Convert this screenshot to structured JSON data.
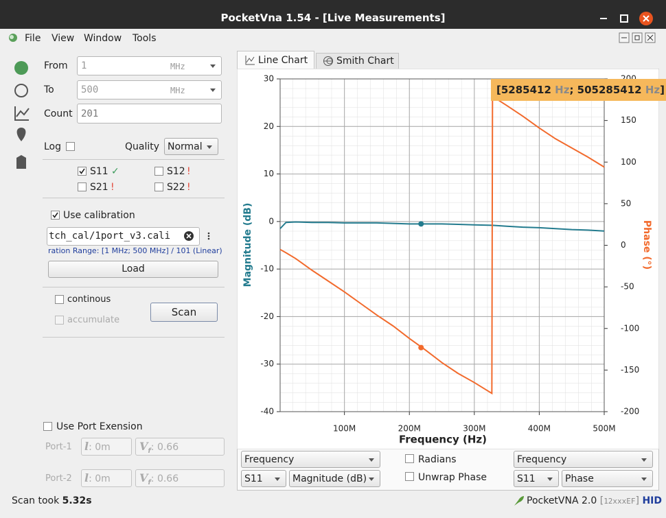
{
  "window": {
    "title": "PocketVna 1.54 - [Live Measurements]"
  },
  "menu": [
    "File",
    "View",
    "Window",
    "Tools"
  ],
  "form": {
    "from": {
      "label": "From",
      "value": "1",
      "unit": "MHz"
    },
    "to": {
      "label": "To",
      "value": "500",
      "unit": "MHz"
    },
    "count": {
      "label": "Count",
      "value": "201"
    },
    "log": {
      "label": "Log"
    },
    "quality": {
      "label": "Quality",
      "value": "Normal"
    },
    "params": [
      {
        "label": "S11",
        "status": "✓"
      },
      {
        "label": "S12",
        "status": "!"
      },
      {
        "label": "S21",
        "status": "!"
      },
      {
        "label": "S22",
        "status": "!"
      }
    ],
    "calibration": {
      "label": "Use calibration",
      "file": "tch_cal/1port_v3.cali",
      "range": "ration Range: [1 MHz; 500 MHz] / 101 (Linear)",
      "load": "Load"
    },
    "continuous": "continous",
    "accumulate": "accumulate",
    "scan": "Scan",
    "port_extension": {
      "label": "Use Port Exension",
      "ports": [
        {
          "label": "Port-1",
          "length": "l",
          "length_value": ": 0m",
          "vf": "V",
          "vf_sub": "f",
          "vf_value": ": 0.66"
        },
        {
          "label": "Port-2",
          "length": "l",
          "length_value": ": 0m",
          "vf": "V",
          "vf_sub": "f",
          "vf_value": ": 0.66"
        }
      ]
    }
  },
  "tabs": [
    "Line Chart",
    "Smith Chart"
  ],
  "chart_data": {
    "type": "line",
    "x_label": "Frequency (Hz)",
    "y_label": "Magnitude (dB)",
    "y2_label": "Phase (°)",
    "x": [
      1000000,
      10000000,
      25000000,
      50000000,
      75000000,
      100000000,
      125000000,
      150000000,
      175000000,
      200000000,
      225000000,
      250000000,
      275000000,
      300000000,
      327000000,
      328000000,
      350000000,
      375000000,
      400000000,
      425000000,
      450000000,
      475000000,
      500000000
    ],
    "xlim": [
      1000000,
      500000000
    ],
    "xticks": [
      {
        "value": 100000000,
        "label": "100M"
      },
      {
        "value": 200000000,
        "label": "200M"
      },
      {
        "value": 300000000,
        "label": "300M"
      },
      {
        "value": 400000000,
        "label": "400M"
      },
      {
        "value": 500000000,
        "label": "500M"
      }
    ],
    "ylim": [
      -40,
      30
    ],
    "yticks": [
      -40,
      -30,
      -20,
      -10,
      0,
      10,
      20,
      30
    ],
    "y2lim": [
      -200,
      200
    ],
    "y2ticks": [
      -200,
      -150,
      -100,
      -50,
      0,
      50,
      100,
      150,
      200
    ],
    "grid": true,
    "series": [
      {
        "name": "Magnitude (dB)",
        "color": "#237b8e",
        "values": [
          -1.5,
          -0.2,
          -0.1,
          -0.2,
          -0.2,
          -0.3,
          -0.3,
          -0.3,
          -0.4,
          -0.5,
          -0.5,
          -0.5,
          -0.6,
          -0.7,
          -0.8,
          -0.8,
          -1.0,
          -1.2,
          -1.3,
          -1.5,
          -1.7,
          -1.8,
          -2.0
        ]
      },
      {
        "name": "Phase",
        "color": "#f26a2c",
        "axis": "y2",
        "values": [
          -5,
          -9,
          -16,
          -30,
          -43,
          -56,
          -70,
          -84,
          -97,
          -112,
          -126,
          -141,
          -154,
          -165,
          -178,
          179,
          168,
          155,
          141,
          128,
          117,
          106,
          94
        ]
      }
    ],
    "markers": [
      {
        "x": 218000000,
        "values": [
          -0.5,
          -123
        ]
      }
    ],
    "range_label": [
      "[",
      "5285412",
      " Hz",
      "; ",
      "505285412",
      " Hz",
      "]"
    ]
  },
  "controls": {
    "left": {
      "x_axis": "Frequency",
      "param": "S11"
    },
    "radians": "Radians",
    "unwrap": "Unwrap Phase",
    "right": {
      "x_axis": "Frequency",
      "param": "S11"
    }
  },
  "status": {
    "scan_label": "Scan took ",
    "scan_time": "5.32s",
    "device": "PocketVNA 2.0",
    "serial_open": " [",
    "serial": "12xxxEF",
    "serial_close": "] ",
    "mode": "HID"
  }
}
